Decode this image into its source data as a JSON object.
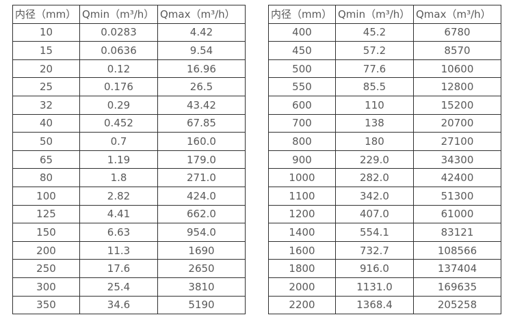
{
  "page": {
    "background_color": "#ffffff",
    "border_color": "#2f2f2f",
    "text_color": "#595959"
  },
  "tables": [
    {
      "name": "flow-spec-table-small-diameters",
      "headers": [
        "内径（mm）",
        "Qmin（m³/h）",
        "Qmax（m³/h）"
      ],
      "rows": [
        [
          "10",
          "0.0283",
          "4.42"
        ],
        [
          "15",
          "0.0636",
          "9.54"
        ],
        [
          "20",
          "0.12",
          "16.96"
        ],
        [
          "25",
          "0.176",
          "26.5"
        ],
        [
          "32",
          "0.29",
          "43.42"
        ],
        [
          "40",
          "0.452",
          "67.85"
        ],
        [
          "50",
          "0.7",
          "160.0"
        ],
        [
          "65",
          "1.19",
          "179.0"
        ],
        [
          "80",
          "1.8",
          "271.0"
        ],
        [
          "100",
          "2.82",
          "424.0"
        ],
        [
          "125",
          "4.41",
          "662.0"
        ],
        [
          "150",
          "6.63",
          "954.0"
        ],
        [
          "200",
          "11.3",
          "1690"
        ],
        [
          "250",
          "17.6",
          "2650"
        ],
        [
          "300",
          "25.4",
          "3810"
        ],
        [
          "350",
          "34.6",
          "5190"
        ]
      ]
    },
    {
      "name": "flow-spec-table-large-diameters",
      "headers": [
        "内径（mm）",
        "Qmin（m³/h）",
        "Qmax（m³/h）"
      ],
      "rows": [
        [
          "400",
          "45.2",
          "6780"
        ],
        [
          "450",
          "57.2",
          "8570"
        ],
        [
          "500",
          "77.6",
          "10600"
        ],
        [
          "550",
          "85.5",
          "12800"
        ],
        [
          "600",
          "110",
          "15200"
        ],
        [
          "700",
          "138",
          "20700"
        ],
        [
          "800",
          "180",
          "27100"
        ],
        [
          "900",
          "229.0",
          "34300"
        ],
        [
          "1000",
          "282.0",
          "42400"
        ],
        [
          "1100",
          "342.0",
          "51300"
        ],
        [
          "1200",
          "407.0",
          "61000"
        ],
        [
          "1400",
          "554.1",
          "83121"
        ],
        [
          "1600",
          "732.7",
          "108566"
        ],
        [
          "1800",
          "916.0",
          "137404"
        ],
        [
          "2000",
          "1131.0",
          "169635"
        ],
        [
          "2200",
          "1368.4",
          "205258"
        ]
      ]
    }
  ]
}
